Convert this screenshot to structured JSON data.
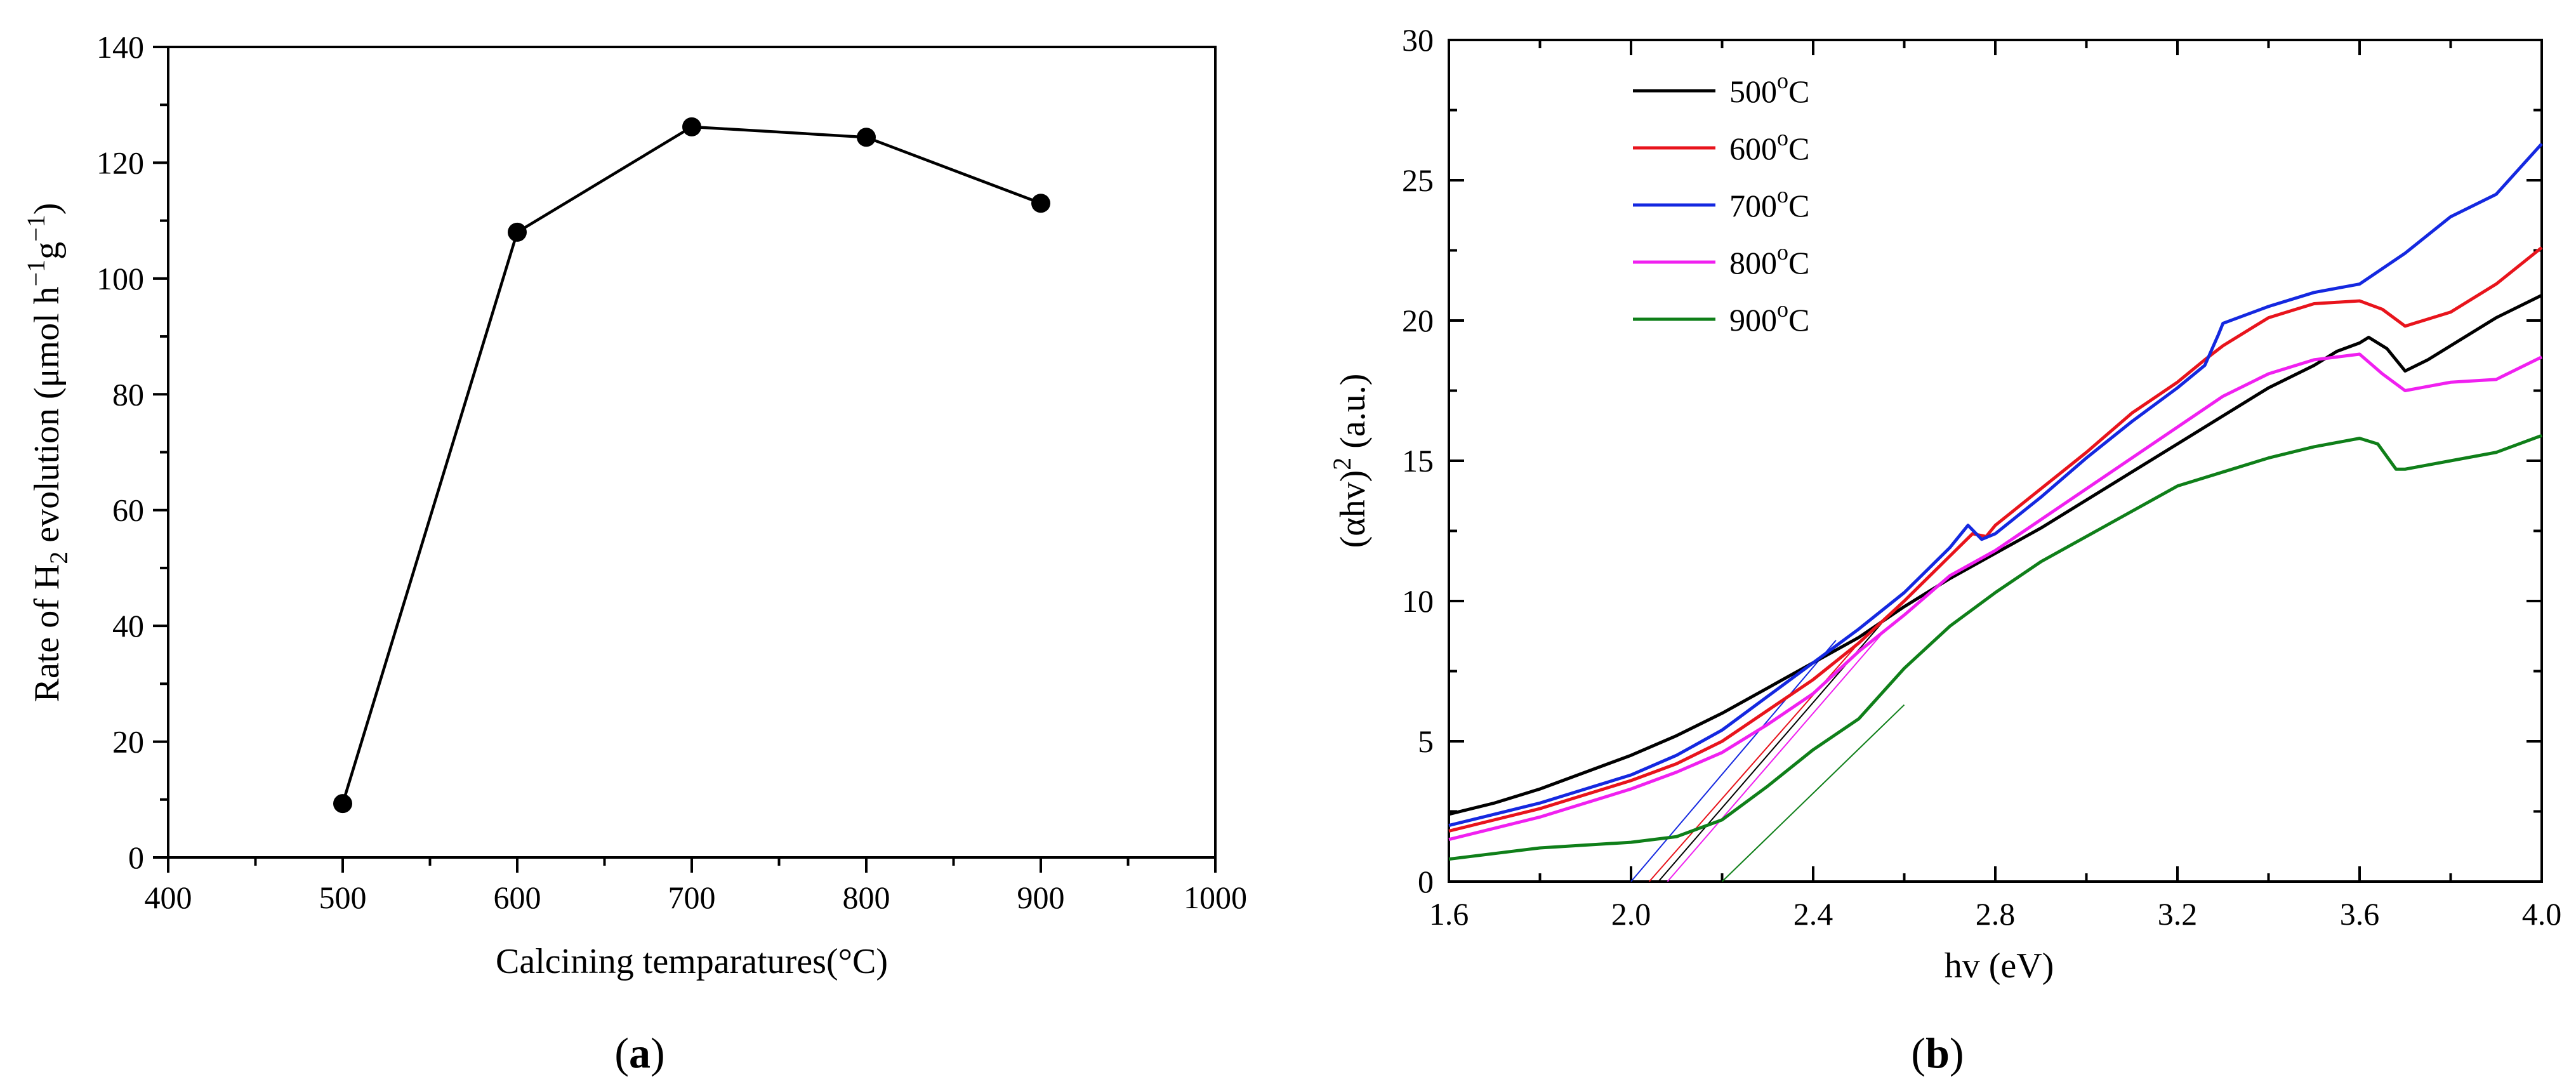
{
  "chart_data": [
    {
      "type": "scatter",
      "panel_label": "a",
      "title": "",
      "xlabel": "Calcining temparatures(°C)",
      "ylabel": {
        "pre": "Rate of H",
        "sub": "2",
        "mid": " evolution (μmol h",
        "sup1": "−1",
        "mid2": "g",
        "sup2": "−1",
        "post": ")"
      },
      "xlim": [
        400,
        1000
      ],
      "ylim": [
        0,
        140
      ],
      "xticks": [
        400,
        500,
        600,
        700,
        800,
        900,
        1000
      ],
      "yticks": [
        0,
        20,
        40,
        60,
        80,
        100,
        120,
        140
      ],
      "series": [
        {
          "name": "H2 evolution rate",
          "color": "#000000",
          "x": [
            500,
            600,
            700,
            800,
            900
          ],
          "y": [
            9.3,
            108,
            126.2,
            124.4,
            113
          ]
        }
      ]
    },
    {
      "type": "line",
      "panel_label": "b",
      "title": "",
      "xlabel": "hv (eV)",
      "ylabel": {
        "pre": "(αhv)",
        "sup": "2",
        "post": " (a.u.)"
      },
      "xlim": [
        1.6,
        4.0
      ],
      "ylim": [
        0,
        30
      ],
      "xticks": [
        "1.6",
        "2.0",
        "2.4",
        "2.8",
        "3.2",
        "3.6",
        "4.0"
      ],
      "yticks": [
        "0",
        "5",
        "10",
        "15",
        "20",
        "25",
        "30"
      ],
      "legend": {
        "placement": "top-left",
        "degree_symbol": "o",
        "unit": "C"
      },
      "series": [
        {
          "name": "500",
          "color": "#000000",
          "x": [
            1.6,
            1.7,
            1.8,
            1.9,
            2.0,
            2.1,
            2.2,
            2.3,
            2.4,
            2.5,
            2.6,
            2.7,
            2.8,
            2.9,
            3.0,
            3.1,
            3.2,
            3.3,
            3.4,
            3.5,
            3.55,
            3.6,
            3.62,
            3.66,
            3.7,
            3.75,
            3.8,
            3.9,
            4.0
          ],
          "y": [
            2.4,
            2.8,
            3.3,
            3.9,
            4.5,
            5.2,
            6.0,
            6.9,
            7.8,
            8.7,
            9.8,
            10.8,
            11.7,
            12.6,
            13.6,
            14.6,
            15.6,
            16.6,
            17.6,
            18.4,
            18.9,
            19.2,
            19.4,
            19.0,
            18.2,
            18.6,
            19.1,
            20.1,
            20.9
          ],
          "tangent": {
            "x0": 2.06,
            "x1": 2.55,
            "y1": 9.2
          }
        },
        {
          "name": "600",
          "color": "#e8141c",
          "x": [
            1.6,
            1.7,
            1.8,
            1.9,
            2.0,
            2.1,
            2.2,
            2.3,
            2.4,
            2.5,
            2.6,
            2.7,
            2.75,
            2.78,
            2.8,
            2.9,
            3.0,
            3.1,
            3.2,
            3.26,
            3.3,
            3.4,
            3.5,
            3.6,
            3.65,
            3.7,
            3.8,
            3.9,
            4.0
          ],
          "y": [
            1.8,
            2.2,
            2.6,
            3.1,
            3.6,
            4.2,
            5.0,
            6.1,
            7.2,
            8.5,
            10.0,
            11.6,
            12.4,
            12.3,
            12.7,
            14.0,
            15.3,
            16.7,
            17.8,
            18.6,
            19.1,
            20.1,
            20.6,
            20.7,
            20.4,
            19.8,
            20.3,
            21.3,
            22.6
          ],
          "tangent": {
            "x0": 2.04,
            "x1": 2.5,
            "y1": 8.5
          }
        },
        {
          "name": "700",
          "color": "#1428e0",
          "x": [
            1.6,
            1.7,
            1.8,
            1.9,
            2.0,
            2.1,
            2.2,
            2.3,
            2.4,
            2.5,
            2.6,
            2.7,
            2.74,
            2.77,
            2.8,
            2.9,
            3.0,
            3.1,
            3.2,
            3.26,
            3.29,
            3.3,
            3.4,
            3.5,
            3.6,
            3.7,
            3.8,
            3.9,
            4.0
          ],
          "y": [
            2.0,
            2.4,
            2.8,
            3.3,
            3.8,
            4.5,
            5.4,
            6.6,
            7.8,
            9.0,
            10.3,
            11.9,
            12.7,
            12.2,
            12.4,
            13.7,
            15.1,
            16.4,
            17.6,
            18.4,
            19.5,
            19.9,
            20.5,
            21.0,
            21.3,
            22.4,
            23.7,
            24.5,
            26.3
          ],
          "tangent": {
            "x0": 2.0,
            "x1": 2.45,
            "y1": 8.6
          }
        },
        {
          "name": "800",
          "color": "#f020f0",
          "x": [
            1.6,
            1.7,
            1.8,
            1.9,
            2.0,
            2.1,
            2.2,
            2.3,
            2.4,
            2.5,
            2.6,
            2.7,
            2.8,
            2.9,
            3.0,
            3.1,
            3.2,
            3.3,
            3.4,
            3.5,
            3.55,
            3.6,
            3.65,
            3.7,
            3.8,
            3.9,
            4.0
          ],
          "y": [
            1.5,
            1.9,
            2.3,
            2.8,
            3.3,
            3.9,
            4.6,
            5.6,
            6.7,
            8.2,
            9.5,
            10.9,
            11.8,
            12.9,
            14.0,
            15.1,
            16.2,
            17.3,
            18.1,
            18.6,
            18.7,
            18.8,
            18.1,
            17.5,
            17.8,
            17.9,
            18.7
          ],
          "tangent": {
            "x0": 2.08,
            "x1": 2.56,
            "y1": 9.0
          }
        },
        {
          "name": "900",
          "color": "#0f7f19",
          "x": [
            1.6,
            1.7,
            1.8,
            1.9,
            2.0,
            2.1,
            2.2,
            2.3,
            2.4,
            2.5,
            2.6,
            2.7,
            2.8,
            2.9,
            3.0,
            3.1,
            3.2,
            3.3,
            3.4,
            3.5,
            3.6,
            3.64,
            3.68,
            3.7,
            3.8,
            3.9,
            4.0
          ],
          "y": [
            0.8,
            1.0,
            1.2,
            1.3,
            1.4,
            1.6,
            2.2,
            3.4,
            4.7,
            5.8,
            7.6,
            9.1,
            10.3,
            11.4,
            12.3,
            13.2,
            14.1,
            14.6,
            15.1,
            15.5,
            15.8,
            15.6,
            14.7,
            14.7,
            15.0,
            15.3,
            15.9
          ],
          "tangent": {
            "x0": 2.2,
            "x1": 2.6,
            "y1": 6.3
          }
        }
      ]
    }
  ]
}
